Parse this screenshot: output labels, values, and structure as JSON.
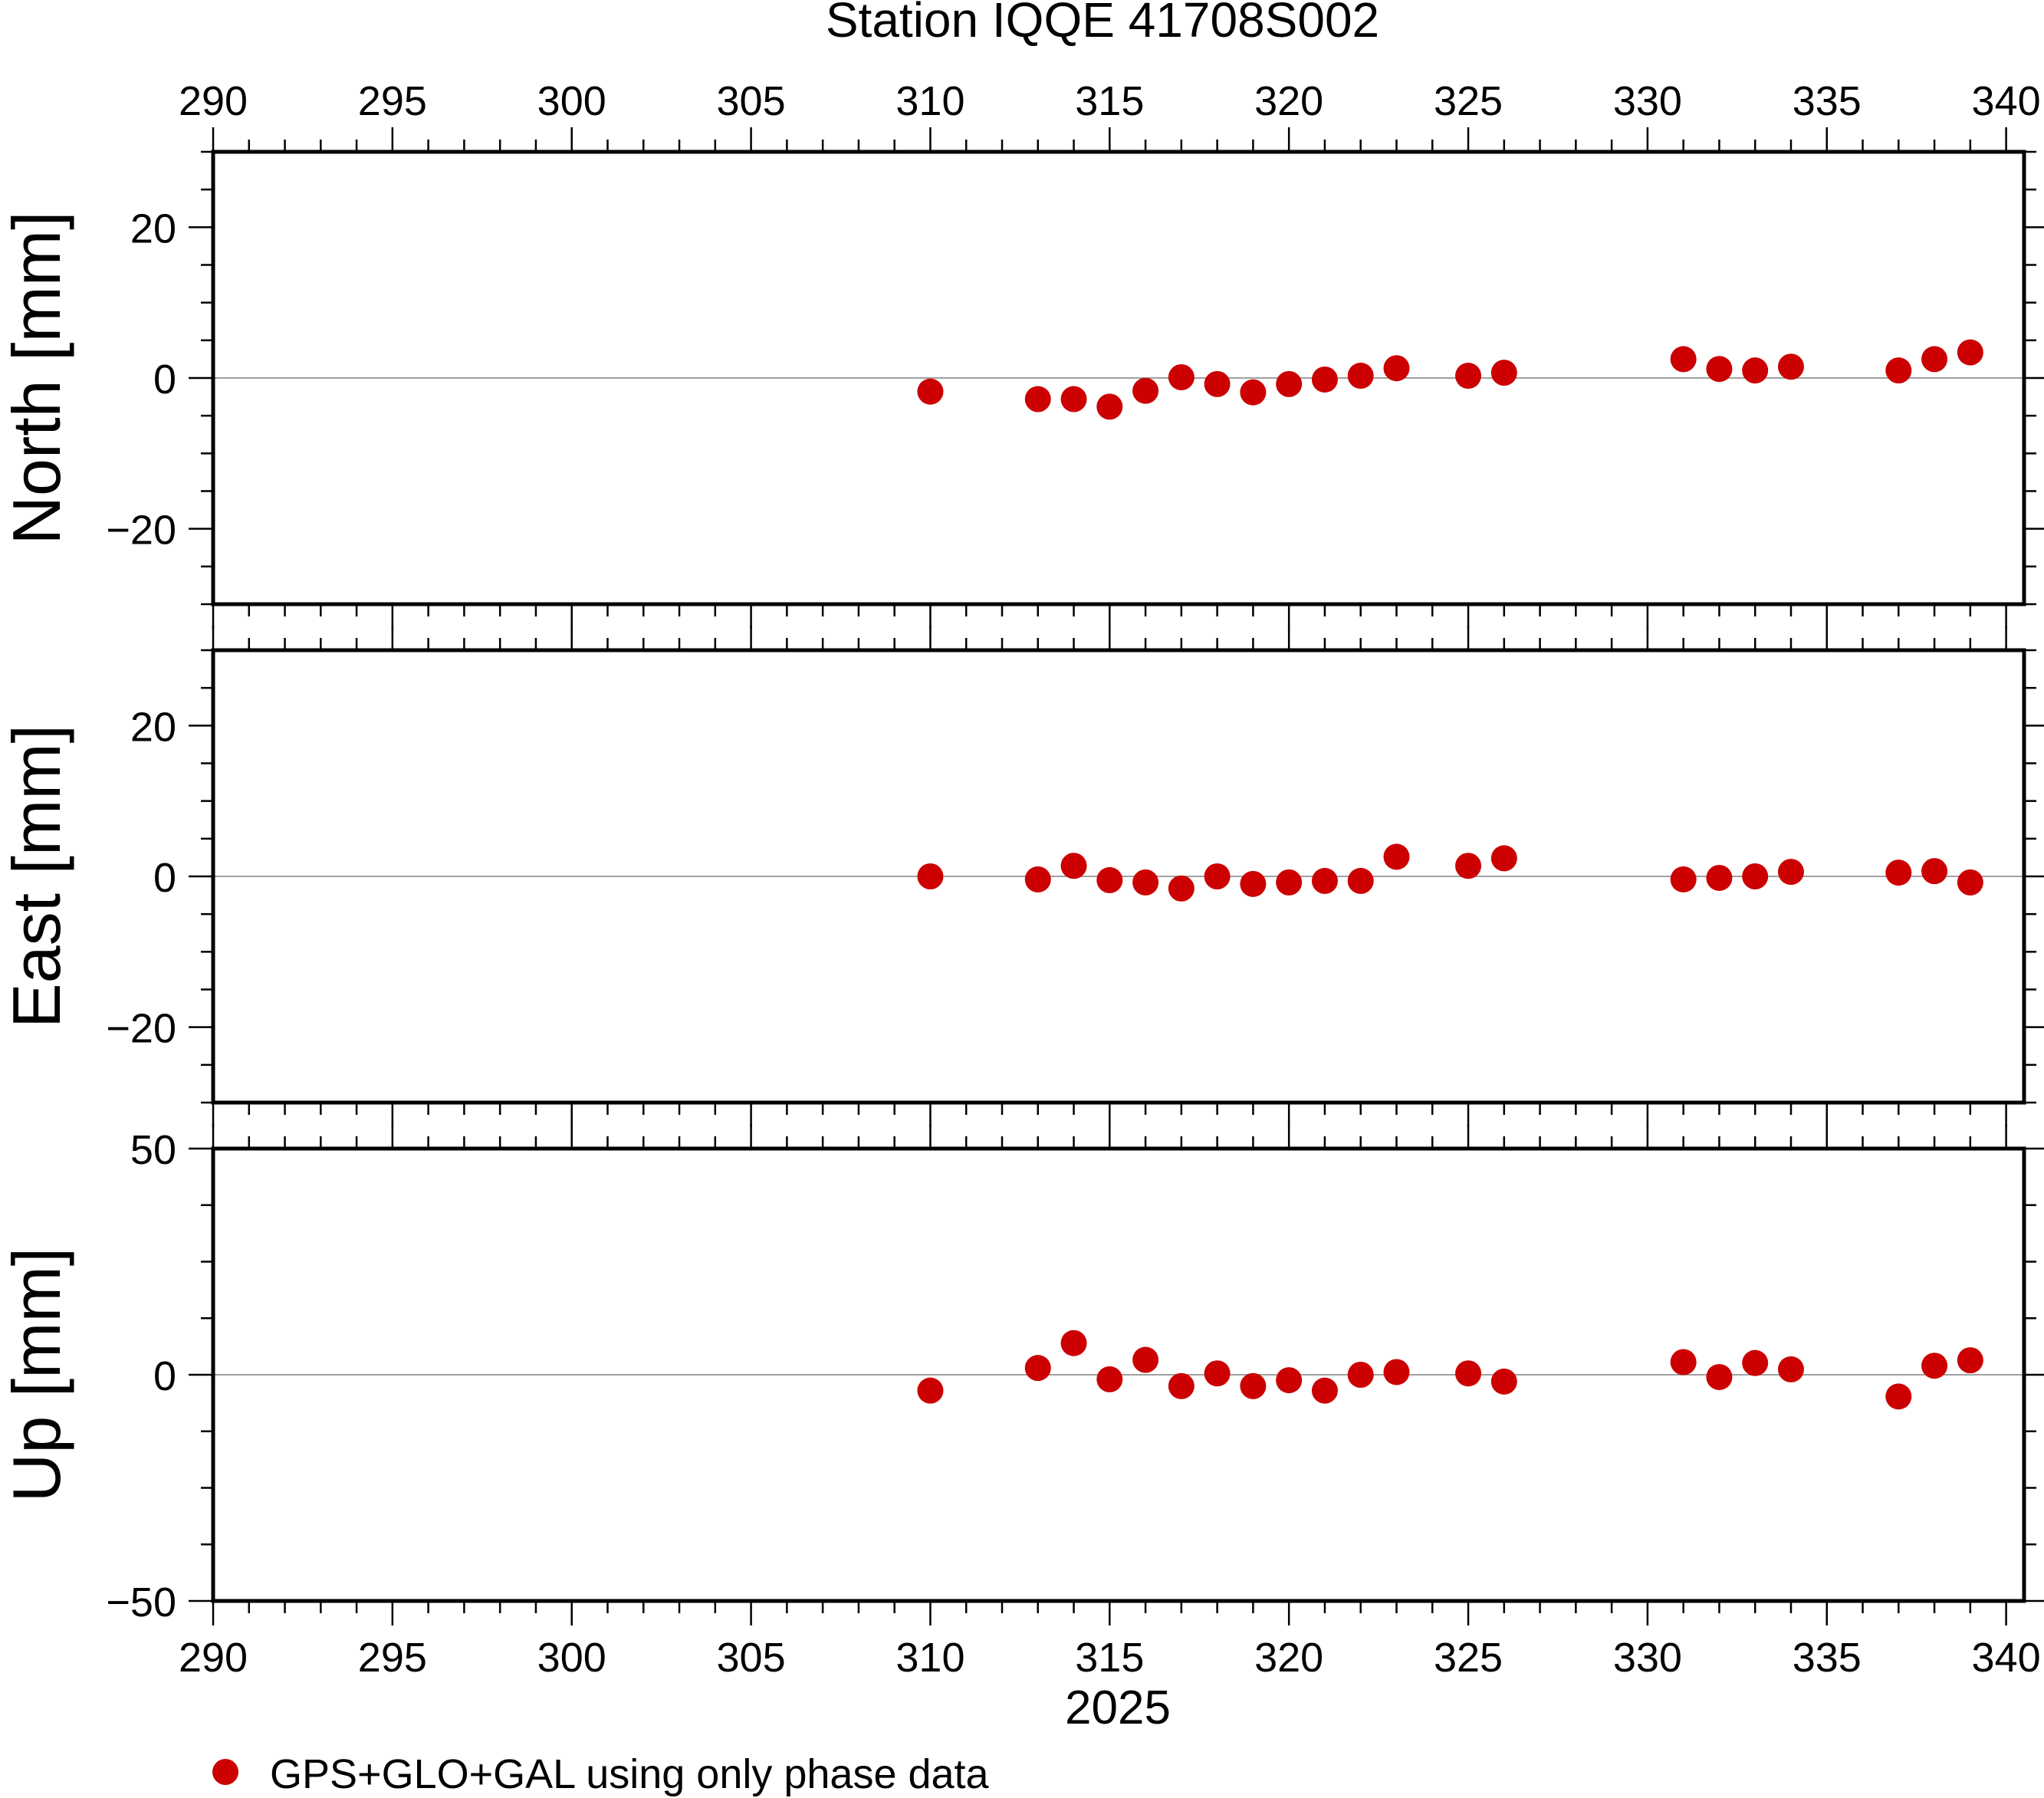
{
  "chart_data": {
    "type": "scatter",
    "title": "Station IQQE 41708S002",
    "xlabel": "2025",
    "xlim": [
      290,
      340.5
    ],
    "x_ticks": [
      290,
      295,
      300,
      305,
      310,
      315,
      320,
      325,
      330,
      335,
      340
    ],
    "x": [
      310,
      313,
      314,
      315,
      316,
      317,
      318,
      319,
      320,
      321,
      322,
      323,
      325,
      326,
      331,
      332,
      333,
      334,
      337,
      338,
      339
    ],
    "series_name": "GPS+GLO+GAL using only phase data",
    "marker_color": "#cc0000",
    "panels": [
      {
        "ylabel": "North [mm]",
        "ylim": [
          -30,
          30
        ],
        "y_ticks": [
          -20,
          0,
          20
        ],
        "y_tick_labels": [
          "−20",
          "0",
          "20"
        ],
        "values": [
          -1.8,
          -2.8,
          -2.8,
          -3.8,
          -1.7,
          0.1,
          -0.8,
          -1.9,
          -0.8,
          -0.2,
          0.3,
          1.3,
          0.3,
          0.7,
          2.5,
          1.2,
          1.0,
          1.5,
          1.0,
          2.5,
          3.4
        ]
      },
      {
        "ylabel": "East [mm]",
        "ylim": [
          -30,
          30
        ],
        "y_ticks": [
          -20,
          0,
          20
        ],
        "y_tick_labels": [
          "−20",
          "0",
          "20"
        ],
        "values": [
          0.0,
          -0.4,
          1.4,
          -0.5,
          -0.8,
          -1.6,
          0.0,
          -1.0,
          -0.8,
          -0.6,
          -0.6,
          2.6,
          1.4,
          2.4,
          -0.4,
          -0.2,
          0.0,
          0.6,
          0.5,
          0.7,
          -0.8
        ]
      },
      {
        "ylabel": "Up [mm]",
        "ylim": [
          -50,
          50
        ],
        "y_ticks": [
          -50,
          0,
          50
        ],
        "y_tick_labels": [
          "−50",
          "0",
          "50"
        ],
        "values": [
          -3.5,
          1.5,
          7.0,
          -1.0,
          3.3,
          -2.5,
          0.3,
          -2.5,
          -1.2,
          -3.5,
          0.0,
          0.6,
          0.3,
          -1.5,
          2.8,
          -0.5,
          2.6,
          1.2,
          -4.8,
          2.0,
          3.2
        ]
      }
    ]
  }
}
